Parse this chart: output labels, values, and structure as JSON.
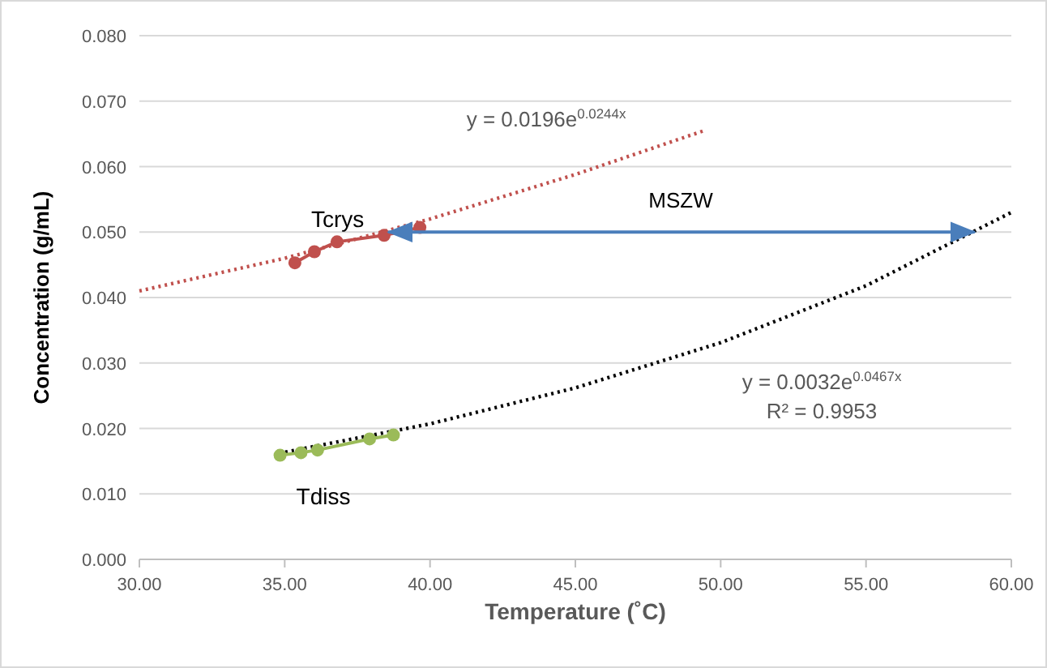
{
  "chart_data": {
    "type": "line",
    "xlabel": "Temperature (˚C)",
    "ylabel": "Concentration (g/mL)",
    "xlim": [
      30,
      60
    ],
    "xticks": [
      {
        "value": 30,
        "label": "30.00"
      },
      {
        "value": 35,
        "label": "35.00"
      },
      {
        "value": 40,
        "label": "40.00"
      },
      {
        "value": 45,
        "label": "45.00"
      },
      {
        "value": 50,
        "label": "50.00"
      },
      {
        "value": 55,
        "label": "55.00"
      },
      {
        "value": 60,
        "label": "60.00"
      }
    ],
    "ylim": [
      0,
      0.08
    ],
    "yticks": [
      {
        "value": 0,
        "label": "0.000"
      },
      {
        "value": 0.01,
        "label": "0.010"
      },
      {
        "value": 0.02,
        "label": "0.020"
      },
      {
        "value": 0.03,
        "label": "0.030"
      },
      {
        "value": 0.04,
        "label": "0.040"
      },
      {
        "value": 0.05,
        "label": "0.050"
      },
      {
        "value": 0.06,
        "label": "0.060"
      },
      {
        "value": 0.07,
        "label": "0.070"
      },
      {
        "value": 0.08,
        "label": "0.080"
      }
    ],
    "grid": "y",
    "legend": false,
    "series": [
      {
        "type": "line",
        "color": "#c0504d",
        "line_style": "dotted",
        "marker": "none",
        "x": [
          30,
          35,
          40,
          45,
          49.5
        ],
        "values": [
          0.041,
          0.046,
          0.052,
          0.0588,
          0.0656
        ]
      },
      {
        "type": "line",
        "color": "#000000",
        "line_style": "dotted",
        "marker": "none",
        "x": [
          34.8,
          40,
          45,
          50,
          55,
          60
        ],
        "values": [
          0.0162,
          0.0207,
          0.0262,
          0.0331,
          0.0418,
          0.053
        ]
      },
      {
        "name": "Tcrys",
        "type": "line",
        "color": "#c0504d",
        "line_style": "solid",
        "marker": "circle",
        "x": [
          35.35,
          36.02,
          36.8,
          38.42,
          39.65
        ],
        "values": [
          0.0453,
          0.047,
          0.0485,
          0.0495,
          0.0507
        ]
      },
      {
        "name": "Tdiss",
        "type": "line",
        "color": "#9bbb59",
        "line_style": "solid",
        "marker": "circle",
        "x": [
          34.84,
          35.56,
          36.13,
          37.92,
          38.74
        ],
        "values": [
          0.0159,
          0.0163,
          0.0167,
          0.0184,
          0.019
        ]
      },
      {
        "type": "line",
        "color": "#4a7ebb",
        "line_style": "solid",
        "marker": "none",
        "x": [
          38.6,
          58.7
        ],
        "values": [
          0.05,
          0.05
        ]
      }
    ],
    "annotations": [
      "y = 0.0196e$^{0.0244x}$",
      "y = 0.0032e$^{0.0467x}$",
      "R² = 0.9953",
      "MSZW"
    ]
  }
}
